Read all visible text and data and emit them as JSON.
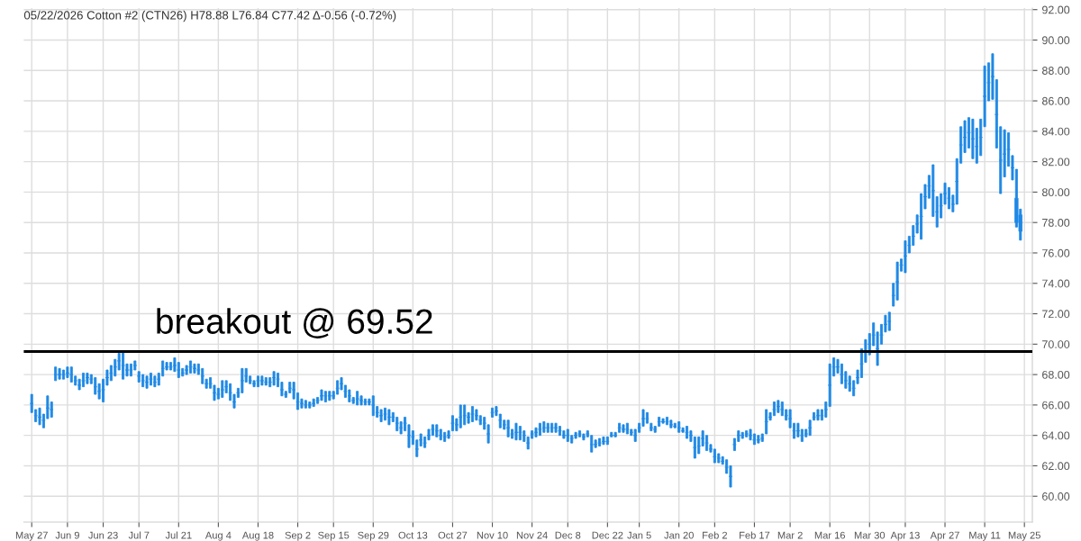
{
  "chart_data": {
    "type": "candlestick",
    "title": "05/22/2026 Cotton #2 (CTN26) H78.88 L76.84 C77.42 Δ-0.56 (-0.72%)",
    "color": "#1e88e5",
    "grid": true,
    "categories": [
      "May 27",
      null,
      null,
      null,
      null,
      null,
      null,
      null,
      null,
      "Jun 9",
      null,
      null,
      null,
      null,
      null,
      null,
      null,
      null,
      "Jun 23",
      null,
      null,
      null,
      null,
      null,
      null,
      null,
      null,
      "Jul 7",
      null,
      null,
      null,
      null,
      null,
      null,
      null,
      null,
      null,
      "Jul 21",
      null,
      null,
      null,
      null,
      null,
      null,
      null,
      null,
      null,
      "Aug 4",
      null,
      null,
      null,
      null,
      null,
      null,
      null,
      null,
      null,
      "Aug 18",
      null,
      null,
      null,
      null,
      null,
      null,
      null,
      null,
      null,
      "Sep 2",
      null,
      null,
      null,
      null,
      null,
      null,
      null,
      null,
      "Sep 15",
      null,
      null,
      null,
      null,
      null,
      null,
      null,
      null,
      null,
      "Sep 29",
      null,
      null,
      null,
      null,
      null,
      null,
      null,
      null,
      null,
      "Oct 13",
      null,
      null,
      null,
      null,
      null,
      null,
      null,
      null,
      null,
      "Oct 27",
      null,
      null,
      null,
      null,
      null,
      null,
      null,
      null,
      null,
      "Nov 10",
      null,
      null,
      null,
      null,
      null,
      null,
      null,
      null,
      null,
      "Nov 24",
      null,
      null,
      null,
      null,
      null,
      null,
      null,
      null,
      "Dec 8",
      null,
      null,
      null,
      null,
      null,
      null,
      null,
      null,
      null,
      "Dec 22",
      null,
      null,
      null,
      null,
      null,
      null,
      null,
      "Jan 5",
      null,
      null,
      null,
      null,
      null,
      null,
      null,
      null,
      null,
      "Jan 20",
      null,
      null,
      null,
      null,
      null,
      null,
      null,
      null,
      "Feb 2",
      null,
      null,
      null,
      null,
      null,
      null,
      null,
      null,
      null,
      "Feb 17",
      null,
      null,
      null,
      null,
      null,
      null,
      null,
      null,
      "Mar 2",
      null,
      null,
      null,
      null,
      null,
      null,
      null,
      null,
      null,
      "Mar 16",
      null,
      null,
      null,
      null,
      null,
      null,
      null,
      null,
      null,
      "Mar 30",
      null,
      null,
      null,
      null,
      null,
      null,
      null,
      null,
      "Apr 13",
      null,
      null,
      null,
      null,
      null,
      null,
      null,
      null,
      null,
      "Apr 27",
      null,
      null,
      null,
      null,
      null,
      null,
      null,
      null,
      null,
      "May 11",
      null,
      null,
      null,
      null,
      null,
      null,
      null,
      null,
      null,
      "May 25"
    ],
    "ohlc": [
      [
        66.1,
        66.7,
        65.5,
        66.1
      ],
      [
        65.3,
        65.7,
        64.9,
        65.3
      ],
      [
        65.2,
        65.8,
        64.7,
        65.2
      ],
      [
        65.0,
        65.4,
        64.5,
        65.0
      ],
      [
        65.8,
        66.6,
        65.1,
        65.8
      ],
      [
        65.7,
        66.2,
        65.2,
        65.7
      ],
      [
        68.0,
        68.5,
        67.6,
        68.0
      ],
      [
        68.0,
        68.4,
        67.7,
        68.0
      ],
      [
        68.0,
        68.3,
        67.7,
        68.0
      ],
      [
        68.1,
        68.5,
        67.8,
        68.1
      ],
      [
        68.0,
        68.5,
        67.5,
        68.0
      ],
      [
        67.6,
        67.9,
        67.3,
        67.6
      ],
      [
        67.3,
        67.7,
        67.0,
        67.3
      ],
      [
        67.6,
        68.1,
        67.2,
        67.6
      ],
      [
        67.8,
        68.1,
        67.4,
        67.8
      ],
      [
        67.7,
        68.0,
        67.4,
        67.7
      ],
      [
        67.2,
        67.8,
        66.7,
        67.2
      ],
      [
        66.9,
        67.4,
        66.4,
        66.9
      ],
      [
        67.0,
        67.7,
        66.2,
        67.0
      ],
      [
        67.8,
        68.3,
        67.3,
        67.8
      ],
      [
        68.1,
        68.6,
        67.6,
        68.1
      ],
      [
        68.5,
        69.0,
        67.9,
        68.5
      ],
      [
        68.9,
        69.4,
        68.3,
        68.9
      ],
      [
        68.6,
        69.5,
        67.7,
        68.6
      ],
      [
        68.3,
        68.7,
        67.9,
        68.3
      ],
      [
        68.3,
        68.7,
        67.9,
        68.3
      ],
      [
        68.6,
        68.9,
        68.3,
        68.6
      ],
      [
        67.9,
        68.2,
        67.5,
        67.9
      ],
      [
        67.6,
        68.0,
        67.2,
        67.6
      ],
      [
        67.5,
        67.9,
        67.1,
        67.5
      ],
      [
        67.7,
        68.1,
        67.3,
        67.7
      ],
      [
        67.5,
        67.9,
        67.2,
        67.5
      ],
      [
        67.7,
        68.1,
        67.3,
        67.7
      ],
      [
        68.4,
        68.9,
        67.9,
        68.4
      ],
      [
        68.5,
        68.8,
        68.3,
        68.5
      ],
      [
        68.5,
        68.8,
        68.3,
        68.5
      ],
      [
        68.6,
        69.1,
        68.2,
        68.6
      ],
      [
        68.3,
        68.8,
        67.8,
        68.3
      ],
      [
        68.1,
        68.4,
        67.9,
        68.1
      ],
      [
        68.3,
        68.6,
        68.0,
        68.3
      ],
      [
        68.5,
        68.9,
        68.1,
        68.5
      ],
      [
        68.4,
        68.7,
        68.1,
        68.4
      ],
      [
        68.3,
        68.7,
        68.0,
        68.3
      ],
      [
        67.9,
        68.4,
        67.4,
        67.9
      ],
      [
        67.4,
        67.7,
        67.1,
        67.4
      ],
      [
        67.4,
        67.8,
        67.1,
        67.4
      ],
      [
        66.8,
        67.3,
        66.3,
        66.8
      ],
      [
        66.7,
        67.1,
        66.4,
        66.7
      ],
      [
        67.0,
        67.6,
        66.5,
        67.0
      ],
      [
        67.2,
        67.6,
        66.8,
        67.2
      ],
      [
        66.8,
        67.4,
        66.3,
        66.8
      ],
      [
        66.2,
        66.7,
        65.8,
        66.2
      ],
      [
        66.8,
        67.1,
        66.5,
        66.8
      ],
      [
        67.6,
        68.4,
        66.8,
        67.6
      ],
      [
        67.9,
        68.4,
        67.5,
        67.9
      ],
      [
        67.6,
        67.9,
        67.4,
        67.6
      ],
      [
        67.4,
        67.6,
        67.2,
        67.4
      ],
      [
        67.6,
        67.9,
        67.2,
        67.6
      ],
      [
        67.6,
        67.9,
        67.3,
        67.6
      ],
      [
        67.5,
        67.8,
        67.3,
        67.5
      ],
      [
        67.5,
        67.8,
        67.2,
        67.5
      ],
      [
        67.8,
        68.2,
        67.3,
        67.8
      ],
      [
        67.7,
        68.1,
        67.2,
        67.7
      ],
      [
        67.0,
        67.5,
        66.6,
        67.0
      ],
      [
        66.7,
        66.9,
        66.5,
        66.7
      ],
      [
        67.1,
        67.5,
        66.8,
        67.1
      ],
      [
        67.0,
        67.5,
        66.4,
        67.0
      ],
      [
        66.2,
        66.8,
        65.7,
        66.2
      ],
      [
        66.1,
        66.4,
        65.8,
        66.1
      ],
      [
        66.0,
        66.3,
        65.8,
        66.0
      ],
      [
        66.0,
        66.2,
        65.8,
        66.0
      ],
      [
        66.1,
        66.4,
        65.9,
        66.1
      ],
      [
        66.3,
        66.5,
        66.1,
        66.3
      ],
      [
        66.6,
        67.0,
        66.3,
        66.6
      ],
      [
        66.6,
        66.9,
        66.2,
        66.6
      ],
      [
        66.6,
        66.9,
        66.3,
        66.6
      ],
      [
        66.6,
        66.9,
        66.4,
        66.6
      ],
      [
        67.1,
        67.6,
        66.7,
        67.1
      ],
      [
        67.4,
        67.8,
        67.0,
        67.4
      ],
      [
        66.9,
        67.3,
        66.5,
        66.9
      ],
      [
        66.6,
        67.0,
        66.2,
        66.6
      ],
      [
        66.3,
        66.5,
        66.1,
        66.3
      ],
      [
        66.4,
        66.9,
        66.0,
        66.4
      ],
      [
        66.3,
        66.6,
        66.0,
        66.3
      ],
      [
        66.2,
        66.4,
        66.0,
        66.2
      ],
      [
        66.2,
        66.4,
        66.0,
        66.2
      ],
      [
        66.0,
        66.6,
        65.3,
        66.0
      ],
      [
        65.5,
        65.9,
        65.2,
        65.5
      ],
      [
        65.3,
        65.7,
        64.9,
        65.3
      ],
      [
        65.4,
        65.8,
        65.0,
        65.4
      ],
      [
        65.2,
        65.7,
        64.7,
        65.2
      ],
      [
        65.2,
        65.5,
        64.9,
        65.2
      ],
      [
        64.8,
        65.2,
        64.3,
        64.8
      ],
      [
        64.5,
        64.9,
        64.1,
        64.5
      ],
      [
        64.8,
        65.2,
        64.3,
        64.8
      ],
      [
        64.0,
        64.7,
        63.2,
        64.0
      ],
      [
        63.9,
        64.3,
        63.4,
        63.9
      ],
      [
        63.1,
        63.7,
        62.6,
        63.1
      ],
      [
        63.7,
        64.1,
        63.3,
        63.7
      ],
      [
        63.5,
        63.9,
        63.2,
        63.5
      ],
      [
        64.0,
        64.4,
        63.7,
        64.0
      ],
      [
        64.4,
        64.7,
        64.0,
        64.4
      ],
      [
        64.3,
        64.7,
        63.9,
        64.3
      ],
      [
        64.0,
        64.4,
        63.7,
        64.0
      ],
      [
        63.9,
        64.2,
        63.6,
        63.9
      ],
      [
        64.0,
        64.3,
        63.8,
        64.0
      ],
      [
        64.8,
        65.3,
        64.3,
        64.8
      ],
      [
        64.7,
        65.1,
        64.3,
        64.7
      ],
      [
        65.2,
        66.0,
        64.5,
        65.2
      ],
      [
        65.3,
        66.0,
        64.7,
        65.3
      ],
      [
        65.2,
        65.5,
        64.8,
        65.2
      ],
      [
        65.4,
        65.9,
        64.9,
        65.4
      ],
      [
        65.3,
        65.7,
        65.0,
        65.3
      ],
      [
        65.0,
        65.3,
        64.7,
        65.0
      ],
      [
        64.8,
        65.2,
        64.4,
        64.8
      ],
      [
        64.1,
        64.7,
        63.5,
        64.1
      ],
      [
        65.5,
        65.8,
        65.2,
        65.5
      ],
      [
        65.6,
        65.9,
        65.3,
        65.6
      ],
      [
        65.0,
        65.4,
        64.5,
        65.0
      ],
      [
        64.7,
        65.0,
        64.4,
        64.7
      ],
      [
        64.5,
        65.0,
        63.9,
        64.5
      ],
      [
        64.1,
        64.4,
        63.8,
        64.1
      ],
      [
        64.2,
        64.8,
        63.7,
        64.2
      ],
      [
        64.2,
        64.6,
        63.7,
        64.2
      ],
      [
        64.0,
        64.3,
        63.6,
        64.0
      ],
      [
        63.5,
        63.9,
        63.1,
        63.5
      ],
      [
        64.1,
        64.3,
        63.8,
        64.1
      ],
      [
        64.2,
        64.5,
        63.9,
        64.2
      ],
      [
        64.4,
        64.8,
        64.0,
        64.4
      ],
      [
        64.5,
        64.9,
        64.2,
        64.5
      ],
      [
        64.5,
        64.8,
        64.2,
        64.5
      ],
      [
        64.5,
        64.8,
        64.2,
        64.5
      ],
      [
        64.5,
        64.8,
        64.2,
        64.5
      ],
      [
        64.3,
        64.6,
        64.0,
        64.3
      ],
      [
        64.0,
        64.3,
        63.8,
        64.0
      ],
      [
        64.0,
        64.4,
        63.6,
        64.0
      ],
      [
        63.8,
        64.0,
        63.5,
        63.8
      ],
      [
        64.0,
        64.2,
        63.8,
        64.0
      ],
      [
        64.1,
        64.3,
        63.9,
        64.1
      ],
      [
        63.9,
        64.1,
        63.7,
        63.9
      ],
      [
        64.1,
        64.3,
        63.9,
        64.1
      ],
      [
        63.4,
        64.0,
        62.9,
        63.4
      ],
      [
        63.4,
        63.7,
        63.2,
        63.4
      ],
      [
        63.5,
        63.8,
        63.3,
        63.5
      ],
      [
        63.6,
        63.9,
        63.4,
        63.6
      ],
      [
        63.6,
        63.9,
        63.4,
        63.6
      ],
      [
        64.0,
        64.2,
        63.9,
        64.0
      ],
      [
        64.0,
        64.2,
        63.9,
        64.0
      ],
      [
        64.5,
        64.8,
        64.2,
        64.5
      ],
      [
        64.4,
        64.7,
        64.2,
        64.4
      ],
      [
        64.4,
        64.8,
        64.1,
        64.4
      ],
      [
        64.2,
        64.4,
        64.0,
        64.2
      ],
      [
        64.0,
        64.4,
        63.6,
        64.0
      ],
      [
        64.5,
        64.8,
        64.2,
        64.5
      ],
      [
        65.1,
        65.7,
        64.6,
        65.1
      ],
      [
        65.1,
        65.5,
        64.8,
        65.1
      ],
      [
        64.5,
        64.8,
        64.3,
        64.5
      ],
      [
        64.4,
        64.6,
        64.2,
        64.4
      ],
      [
        64.9,
        65.2,
        64.6,
        64.9
      ],
      [
        64.9,
        65.1,
        64.8,
        64.9
      ],
      [
        64.9,
        65.2,
        64.7,
        64.9
      ],
      [
        64.7,
        65.0,
        64.5,
        64.7
      ],
      [
        64.6,
        64.8,
        64.5,
        64.6
      ],
      [
        64.5,
        64.9,
        64.2,
        64.5
      ],
      [
        64.3,
        64.5,
        64.2,
        64.3
      ],
      [
        64.2,
        64.6,
        63.8,
        64.2
      ],
      [
        64.0,
        64.3,
        63.6,
        64.0
      ],
      [
        63.2,
        63.9,
        62.5,
        63.2
      ],
      [
        63.3,
        63.9,
        62.8,
        63.3
      ],
      [
        63.8,
        64.3,
        63.3,
        63.8
      ],
      [
        63.5,
        64.0,
        63.0,
        63.5
      ],
      [
        63.1,
        63.4,
        62.9,
        63.1
      ],
      [
        62.6,
        63.1,
        62.2,
        62.6
      ],
      [
        62.5,
        62.8,
        62.2,
        62.5
      ],
      [
        62.3,
        62.6,
        62.1,
        62.3
      ],
      [
        61.9,
        62.4,
        61.5,
        61.9
      ],
      [
        61.3,
        62.0,
        60.6,
        61.3
      ],
      [
        63.4,
        63.8,
        63.0,
        63.4
      ],
      [
        64.0,
        64.3,
        63.6,
        64.0
      ],
      [
        64.0,
        64.2,
        63.8,
        64.0
      ],
      [
        64.1,
        64.3,
        63.9,
        64.1
      ],
      [
        64.0,
        64.4,
        63.7,
        64.0
      ],
      [
        63.7,
        64.1,
        63.4,
        63.7
      ],
      [
        63.7,
        64.0,
        63.5,
        63.7
      ],
      [
        63.8,
        64.1,
        63.6,
        63.8
      ],
      [
        64.9,
        65.7,
        64.1,
        64.9
      ],
      [
        65.2,
        65.5,
        65.0,
        65.2
      ],
      [
        65.7,
        66.2,
        65.3,
        65.7
      ],
      [
        65.9,
        66.3,
        65.5,
        65.9
      ],
      [
        65.7,
        66.2,
        65.3,
        65.7
      ],
      [
        65.3,
        65.7,
        65.0,
        65.3
      ],
      [
        65.1,
        65.7,
        64.5,
        65.1
      ],
      [
        64.3,
        64.8,
        63.8,
        64.3
      ],
      [
        64.3,
        64.8,
        63.9,
        64.3
      ],
      [
        64.0,
        64.4,
        63.6,
        64.0
      ],
      [
        64.1,
        64.4,
        63.9,
        64.1
      ],
      [
        64.5,
        65.0,
        64.0,
        64.5
      ],
      [
        65.2,
        65.5,
        65.0,
        65.2
      ],
      [
        65.3,
        65.7,
        65.0,
        65.3
      ],
      [
        65.3,
        65.7,
        65.0,
        65.3
      ],
      [
        65.7,
        66.2,
        65.2,
        65.7
      ],
      [
        67.3,
        68.7,
        65.9,
        67.3
      ],
      [
        68.5,
        69.1,
        67.9,
        68.5
      ],
      [
        68.5,
        69.0,
        68.1,
        68.5
      ],
      [
        68.0,
        68.7,
        67.4,
        68.0
      ],
      [
        67.6,
        68.2,
        67.1,
        67.6
      ],
      [
        67.4,
        67.9,
        66.9,
        67.4
      ],
      [
        67.1,
        67.6,
        66.6,
        67.1
      ],
      [
        67.8,
        68.3,
        67.4,
        67.8
      ],
      [
        68.7,
        69.7,
        67.8,
        68.7
      ],
      [
        69.5,
        70.3,
        68.8,
        69.5
      ],
      [
        70.0,
        70.7,
        69.3,
        70.0
      ],
      [
        70.6,
        71.4,
        69.9,
        70.6
      ],
      [
        69.7,
        70.8,
        68.6,
        69.7
      ],
      [
        70.6,
        71.3,
        70.0,
        70.6
      ],
      [
        71.3,
        71.9,
        70.8,
        71.3
      ],
      [
        71.5,
        72.1,
        70.9,
        71.5
      ],
      [
        73.2,
        74.0,
        72.5,
        73.2
      ],
      [
        74.1,
        75.4,
        72.9,
        74.1
      ],
      [
        75.2,
        75.6,
        74.8,
        75.2
      ],
      [
        75.8,
        76.8,
        74.7,
        75.8
      ],
      [
        76.5,
        77.1,
        76.0,
        76.5
      ],
      [
        77.1,
        77.8,
        76.5,
        77.1
      ],
      [
        77.9,
        78.5,
        77.3,
        77.9
      ],
      [
        78.4,
        79.9,
        76.9,
        78.4
      ],
      [
        79.7,
        80.5,
        78.9,
        79.7
      ],
      [
        80.4,
        81.1,
        79.6,
        80.4
      ],
      [
        80.1,
        81.8,
        78.4,
        80.1
      ],
      [
        78.7,
        79.7,
        77.7,
        78.7
      ],
      [
        79.1,
        79.9,
        78.3,
        79.1
      ],
      [
        79.9,
        80.6,
        79.2,
        79.9
      ],
      [
        79.6,
        80.3,
        78.9,
        79.6
      ],
      [
        79.2,
        79.8,
        78.7,
        79.2
      ],
      [
        80.7,
        82.2,
        79.2,
        80.7
      ],
      [
        83.1,
        84.3,
        81.9,
        83.1
      ],
      [
        83.6,
        84.7,
        82.6,
        83.6
      ],
      [
        83.9,
        84.9,
        82.9,
        83.9
      ],
      [
        83.5,
        84.8,
        82.2,
        83.5
      ],
      [
        83.0,
        84.2,
        81.9,
        83.0
      ],
      [
        83.6,
        84.8,
        82.4,
        83.6
      ],
      [
        86.3,
        88.3,
        84.3,
        86.3
      ],
      [
        87.2,
        88.5,
        86.0,
        87.2
      ],
      [
        87.6,
        89.1,
        86.1,
        87.6
      ],
      [
        85.1,
        87.4,
        82.9,
        85.1
      ],
      [
        82.1,
        84.3,
        79.9,
        82.1
      ],
      [
        82.5,
        84.1,
        81.0,
        82.5
      ],
      [
        82.8,
        83.9,
        81.7,
        82.8
      ],
      [
        81.6,
        82.4,
        80.8,
        81.6
      ],
      [
        79.6,
        81.5,
        77.7,
        78.0
      ],
      [
        78.5,
        78.88,
        76.84,
        77.42
      ],
      null
    ],
    "ylim": [
      58.3,
      92.1
    ],
    "yticks": [
      {
        "value": 60,
        "label": "60.00"
      },
      {
        "value": 62,
        "label": "62.00"
      },
      {
        "value": 64,
        "label": "64.00"
      },
      {
        "value": 66,
        "label": "66.00"
      },
      {
        "value": 68,
        "label": "68.00"
      },
      {
        "value": 70,
        "label": "70.00"
      },
      {
        "value": 72,
        "label": "72.00"
      },
      {
        "value": 74,
        "label": "74.00"
      },
      {
        "value": 76,
        "label": "76.00"
      },
      {
        "value": 78,
        "label": "78.00"
      },
      {
        "value": 80,
        "label": "80.00"
      },
      {
        "value": 82,
        "label": "82.00"
      },
      {
        "value": 84,
        "label": "84.00"
      },
      {
        "value": 86,
        "label": "86.00"
      },
      {
        "value": 88,
        "label": "88.00"
      },
      {
        "value": 90,
        "label": "90.00"
      },
      {
        "value": 92,
        "label": "92.00"
      }
    ],
    "ref_lines": [
      {
        "axis": "y",
        "value": 69.52,
        "label": "breakout @ 69.52",
        "color": "#000000"
      }
    ]
  }
}
